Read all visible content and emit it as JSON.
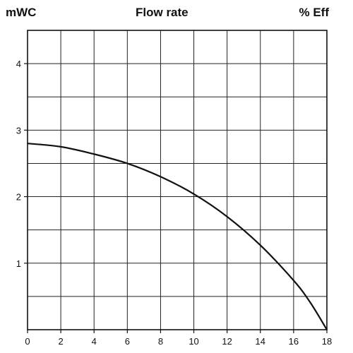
{
  "chart_data": {
    "type": "line",
    "title": "Flow rate",
    "ylabel": "mWC",
    "y2label": "% Eff",
    "xlabel": "",
    "xlim": [
      0,
      18
    ],
    "ylim": [
      0,
      4.5
    ],
    "x_ticks": [
      "0",
      "2",
      "4",
      "6",
      "8",
      "10",
      "12",
      "14",
      "16",
      "18"
    ],
    "y_ticks": [
      "1",
      "2",
      "3",
      "4"
    ],
    "grid": true,
    "grid_x_step": 2,
    "grid_y_step": 0.5,
    "series": [
      {
        "x": [
          0,
          2,
          4,
          6,
          8,
          10,
          12,
          14,
          16,
          17,
          18
        ],
        "y": [
          2.8,
          2.75,
          2.64,
          2.5,
          2.3,
          2.04,
          1.7,
          1.27,
          0.74,
          0.41,
          0.0
        ]
      }
    ],
    "colors": {
      "line": "#111111",
      "grid": "#222222",
      "text": "#111111"
    }
  }
}
